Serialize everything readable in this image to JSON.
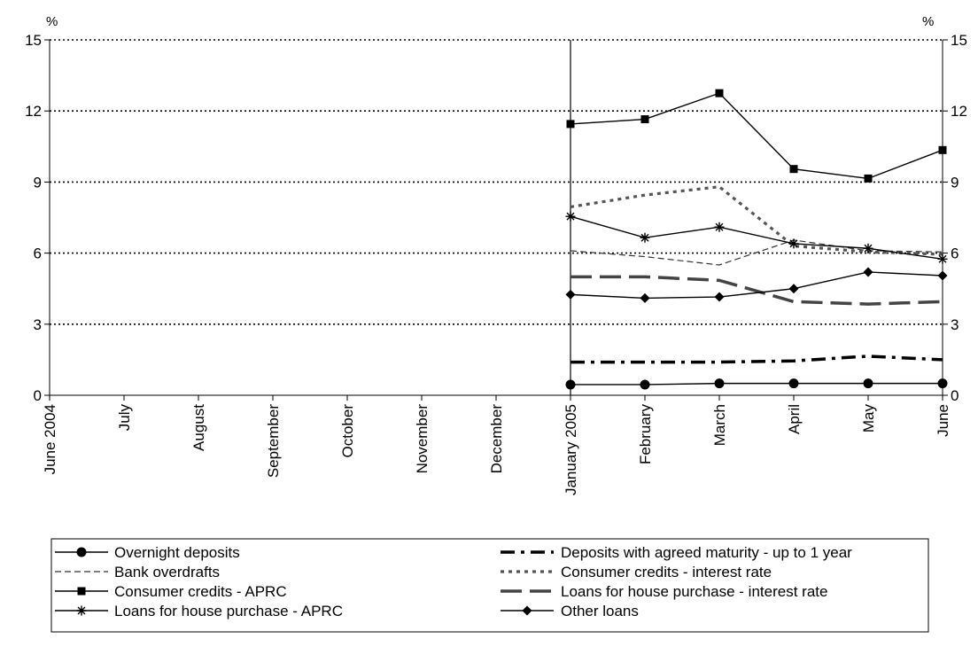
{
  "chart_data": {
    "type": "line",
    "unit_left": "%",
    "unit_right": "%",
    "categories": [
      "June 2004",
      "July",
      "August",
      "September",
      "October",
      "November",
      "December",
      "January 2005",
      "February",
      "March",
      "April",
      "May",
      "June"
    ],
    "ylim": [
      0,
      15
    ],
    "yticks": [
      "0",
      "3",
      "6",
      "9",
      "12",
      "15"
    ],
    "grid": true,
    "legend_position": "bottom",
    "series": [
      {
        "name": "Overnight deposits",
        "style": "solid-circle",
        "values": [
          null,
          null,
          null,
          null,
          null,
          null,
          null,
          0.45,
          0.45,
          0.5,
          0.5,
          0.5,
          0.5
        ]
      },
      {
        "name": "Deposits with agreed maturity - up to 1 year",
        "style": "thick-dashdot",
        "values": [
          null,
          null,
          null,
          null,
          null,
          null,
          null,
          1.4,
          1.4,
          1.4,
          1.45,
          1.65,
          1.5
        ]
      },
      {
        "name": "Bank overdrafts",
        "style": "thin-dash",
        "values": [
          null,
          null,
          null,
          null,
          null,
          null,
          null,
          6.1,
          5.85,
          5.5,
          6.55,
          6.1,
          6.05
        ]
      },
      {
        "name": "Consumer credits - interest rate",
        "style": "dotted",
        "values": [
          null,
          null,
          null,
          null,
          null,
          null,
          null,
          7.95,
          8.45,
          8.8,
          6.3,
          6.05,
          5.95
        ]
      },
      {
        "name": "Consumer credits - APRC",
        "style": "solid-square",
        "values": [
          null,
          null,
          null,
          null,
          null,
          null,
          null,
          11.45,
          11.65,
          12.75,
          9.55,
          9.15,
          10.35
        ]
      },
      {
        "name": "Loans for house purchase - interest rate",
        "style": "thick-long-dash",
        "values": [
          null,
          null,
          null,
          null,
          null,
          null,
          null,
          5.0,
          5.0,
          4.85,
          3.95,
          3.85,
          3.95
        ]
      },
      {
        "name": "Loans for house purchase - APRC",
        "style": "solid-star",
        "values": [
          null,
          null,
          null,
          null,
          null,
          null,
          null,
          7.55,
          6.65,
          7.1,
          6.4,
          6.2,
          5.75
        ]
      },
      {
        "name": "Other loans",
        "style": "solid-diamond",
        "values": [
          null,
          null,
          null,
          null,
          null,
          null,
          null,
          4.25,
          4.1,
          4.15,
          4.5,
          5.2,
          5.05
        ]
      }
    ]
  }
}
